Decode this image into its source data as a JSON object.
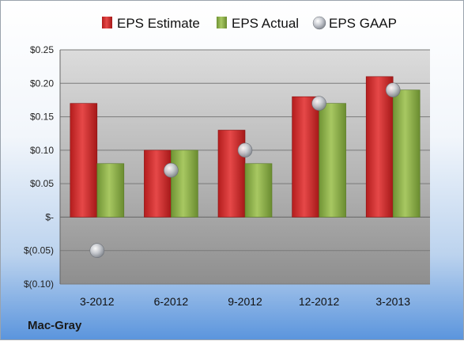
{
  "company": "Mac-Gray",
  "chart_data": {
    "type": "bar",
    "categories": [
      "3-2012",
      "6-2012",
      "9-2012",
      "12-2012",
      "3-2013"
    ],
    "series": [
      {
        "name": "EPS Estimate",
        "kind": "bar",
        "color": "#cc2a2a",
        "values": [
          0.17,
          0.1,
          0.13,
          0.18,
          0.21
        ]
      },
      {
        "name": "EPS Actual",
        "kind": "bar",
        "color": "#8fb14a",
        "values": [
          0.08,
          0.1,
          0.08,
          0.17,
          0.19
        ]
      },
      {
        "name": "EPS GAAP",
        "kind": "scatter",
        "color": "#b8bcc4",
        "values": [
          -0.05,
          0.07,
          0.1,
          0.17,
          0.19
        ]
      }
    ],
    "yticks": [
      {
        "value": 0.25,
        "label": "$0.25"
      },
      {
        "value": 0.2,
        "label": "$0.20"
      },
      {
        "value": 0.15,
        "label": "$0.15"
      },
      {
        "value": 0.1,
        "label": "$0.10"
      },
      {
        "value": 0.05,
        "label": "$0.05"
      },
      {
        "value": 0.0,
        "label": "$-"
      },
      {
        "value": -0.05,
        "label": "$(0.05)"
      },
      {
        "value": -0.1,
        "label": "$(0.10)"
      }
    ],
    "ylim": [
      -0.1,
      0.25
    ],
    "grid": true,
    "legend": "top"
  }
}
